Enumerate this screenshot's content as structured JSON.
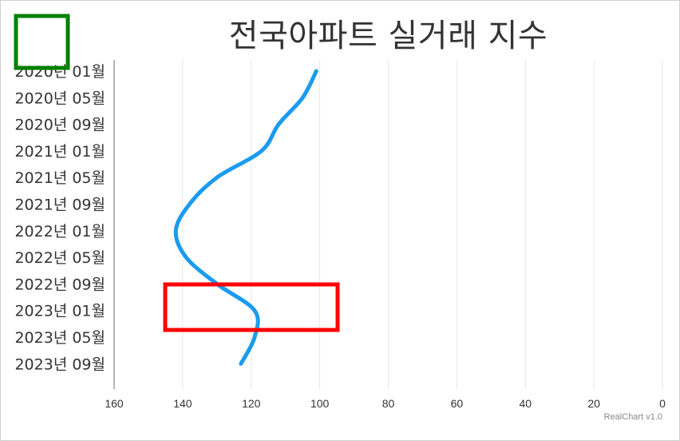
{
  "chart_data": {
    "type": "line",
    "title": "전국아파트 실거래 지수",
    "orientation": "vertical-categories",
    "x_axis": {
      "reversed": true,
      "min": 0,
      "max": 160,
      "ticks": [
        160,
        140,
        120,
        100,
        80,
        60,
        40,
        20,
        0
      ],
      "grid": true
    },
    "y_axis": {
      "reversed": true,
      "labels": [
        "2020년 01월",
        "2020년 05월",
        "2020년 09월",
        "2021년 01월",
        "2021년 05월",
        "2021년 09월",
        "2022년 01월",
        "2022년 05월",
        "2022년 09월",
        "2023년 01월",
        "2023년 05월",
        "2023년 09월"
      ]
    },
    "series": [
      {
        "color": "#1a9bef",
        "points": [
          {
            "month": "2020-01",
            "value": 101
          },
          {
            "month": "2020-05",
            "value": 105
          },
          {
            "month": "2020-09",
            "value": 112
          },
          {
            "month": "2021-01",
            "value": 117
          },
          {
            "month": "2021-05",
            "value": 130
          },
          {
            "month": "2021-09",
            "value": 138
          },
          {
            "month": "2022-01",
            "value": 142
          },
          {
            "month": "2022-05",
            "value": 139
          },
          {
            "month": "2022-09",
            "value": 130
          },
          {
            "month": "2023-01",
            "value": 119
          },
          {
            "month": "2023-05",
            "value": 119
          },
          {
            "month": "2023-09",
            "value": 123
          }
        ]
      }
    ],
    "annotations": [
      {
        "shape": "box",
        "color": "#008000"
      },
      {
        "shape": "box",
        "color": "#ff0000"
      }
    ]
  },
  "credits": "RealChart v1.0"
}
